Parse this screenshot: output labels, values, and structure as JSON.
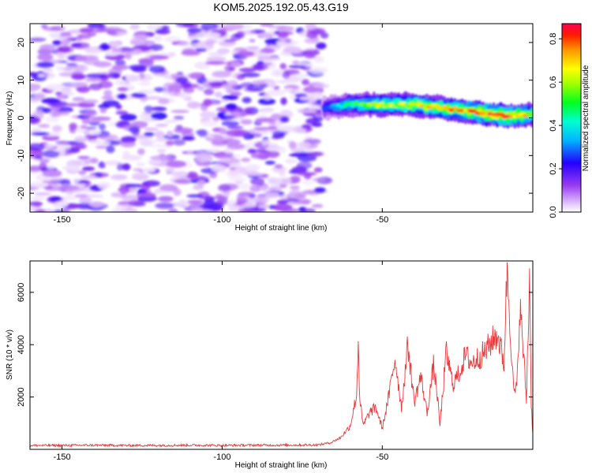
{
  "title": "KOM5.2025.192.05.43.G19",
  "chart_data": [
    {
      "type": "heatmap",
      "xlabel": "Height of straight line (km)",
      "ylabel": "Frequency (Hz)",
      "xlim": [
        -160,
        -3
      ],
      "ylim": [
        -25,
        25
      ],
      "xticks": [
        -150,
        -100,
        -50
      ],
      "yticks": [
        -20,
        -10,
        0,
        10,
        20
      ],
      "noise_region": {
        "x": [
          -160,
          -68
        ],
        "y": [
          -25,
          25
        ],
        "amplitude_max": 0.2
      },
      "signal_ridge": [
        {
          "x": -68,
          "freq": 2.5,
          "amplitude": 0.25
        },
        {
          "x": -60,
          "freq": 3.5,
          "amplitude": 0.45
        },
        {
          "x": -50,
          "freq": 3.5,
          "amplitude": 0.6
        },
        {
          "x": -40,
          "freq": 3.5,
          "amplitude": 0.65
        },
        {
          "x": -30,
          "freq": 2.5,
          "amplitude": 0.7
        },
        {
          "x": -20,
          "freq": 1.5,
          "amplitude": 0.75
        },
        {
          "x": -12,
          "freq": 0.5,
          "amplitude": 0.85
        },
        {
          "x": -3,
          "freq": 1.0,
          "amplitude": 0.6
        }
      ],
      "colorbar": {
        "label": "Normalized spectral amplitude",
        "range": [
          0,
          0.87
        ],
        "ticks": [
          0.0,
          0.2,
          0.4,
          0.6,
          0.8
        ],
        "tick_labels": [
          "0.0",
          "0.2",
          "0.4",
          "0.6",
          "0.8"
        ]
      },
      "grid": false
    },
    {
      "type": "line",
      "xlabel": "Height of straight line (km)",
      "ylabel": "SNR (10 * v/v)",
      "xlim": [
        -160,
        -3
      ],
      "ylim": [
        0,
        7200
      ],
      "xticks": [
        -150,
        -100,
        -50
      ],
      "yticks": [
        2000,
        4000,
        6000
      ],
      "color": "#e83a3a",
      "series": [
        {
          "x": [
            -160,
            -150,
            -140,
            -130,
            -120,
            -110,
            -100,
            -90,
            -80,
            -70,
            -66,
            -63,
            -60,
            -58,
            -57.5,
            -57,
            -56,
            -54,
            -52,
            -50,
            -48,
            -46,
            -44,
            -42,
            -40,
            -38,
            -36,
            -34,
            -33,
            -32,
            -30,
            -28,
            -26,
            -24,
            -22,
            -20,
            -18,
            -16,
            -14,
            -12,
            -11,
            -10,
            -9,
            -8,
            -7,
            -6,
            -5,
            -4,
            -3.5,
            -3
          ],
          "y": [
            150,
            150,
            160,
            150,
            150,
            160,
            150,
            160,
            160,
            170,
            260,
            450,
            900,
            2100,
            4150,
            1900,
            900,
            1400,
            1600,
            800,
            2000,
            3500,
            1600,
            4000,
            1800,
            2800,
            1400,
            3200,
            2300,
            900,
            3700,
            2500,
            2900,
            3600,
            3300,
            3500,
            3700,
            4100,
            4400,
            3300,
            7000,
            4600,
            2200,
            2300,
            5500,
            3800,
            1900,
            6700,
            1800,
            600
          ]
        }
      ],
      "grid": false
    }
  ]
}
